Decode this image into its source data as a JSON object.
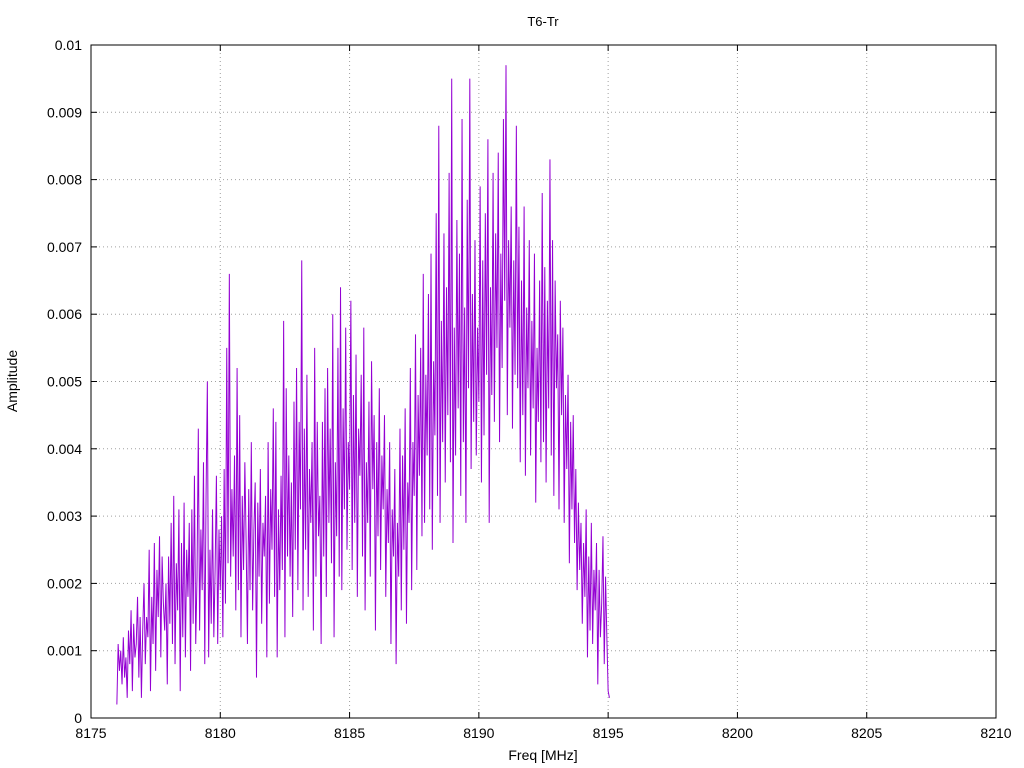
{
  "chart_data": {
    "type": "line",
    "title": "T6-Tr",
    "xlabel": "Freq [MHz]",
    "ylabel": "Amplitude",
    "xlim": [
      8175,
      8210
    ],
    "ylim": [
      0,
      0.01
    ],
    "grid": true,
    "legend": "none",
    "x_ticks": [
      "8175",
      "8180",
      "8185",
      "8190",
      "8195",
      "8200",
      "8205",
      "8210"
    ],
    "y_ticks": [
      "0",
      "0.001",
      "0.002",
      "0.003",
      "0.004",
      "0.005",
      "0.006",
      "0.007",
      "0.008",
      "0.009",
      "0.01"
    ],
    "series": [
      {
        "color": "#9400d3",
        "x_start": 8176.0,
        "x_step": 0.05,
        "values": [
          0.0002,
          0.0011,
          0.0007,
          0.001,
          0.0005,
          0.0012,
          0.0006,
          0.0009,
          0.0003,
          0.0013,
          0.0008,
          0.0016,
          0.0004,
          0.0014,
          0.0009,
          0.0011,
          0.0018,
          0.0006,
          0.0015,
          0.0003,
          0.0013,
          0.002,
          0.0008,
          0.0015,
          0.0012,
          0.0025,
          0.0004,
          0.0018,
          0.0011,
          0.0026,
          0.0007,
          0.0022,
          0.0015,
          0.0027,
          0.0009,
          0.0024,
          0.0017,
          0.0013,
          0.002,
          0.0005,
          0.0024,
          0.0014,
          0.0029,
          0.0011,
          0.0033,
          0.0008,
          0.0023,
          0.0016,
          0.0031,
          0.0004,
          0.0026,
          0.0012,
          0.0032,
          0.0009,
          0.0025,
          0.0018,
          0.0029,
          0.0007,
          0.0031,
          0.0014,
          0.0036,
          0.0011,
          0.0021,
          0.0043,
          0.0013,
          0.0028,
          0.0019,
          0.0038,
          0.0008,
          0.0033,
          0.005,
          0.0009,
          0.0025,
          0.0014,
          0.0031,
          0.0012,
          0.0022,
          0.0036,
          0.0011,
          0.0028,
          0.0019,
          0.003,
          0.0012,
          0.0037,
          0.0017,
          0.0055,
          0.0023,
          0.0066,
          0.0021,
          0.0034,
          0.0024,
          0.0039,
          0.0016,
          0.0052,
          0.0019,
          0.0045,
          0.0012,
          0.0033,
          0.0022,
          0.0038,
          0.0026,
          0.0011,
          0.0034,
          0.0019,
          0.0041,
          0.0016,
          0.0028,
          0.0035,
          0.0006,
          0.0032,
          0.0021,
          0.0037,
          0.0014,
          0.0029,
          0.0024,
          0.0033,
          0.0009,
          0.0041,
          0.0017,
          0.0034,
          0.0025,
          0.0046,
          0.0018,
          0.0044,
          0.0009,
          0.0031,
          0.0019,
          0.0036,
          0.0022,
          0.0059,
          0.0012,
          0.0049,
          0.0024,
          0.0039,
          0.0021,
          0.0035,
          0.0015,
          0.0047,
          0.0025,
          0.0052,
          0.0019,
          0.0044,
          0.0031,
          0.0068,
          0.0016,
          0.0043,
          0.0025,
          0.0051,
          0.0018,
          0.0037,
          0.0029,
          0.0041,
          0.0013,
          0.0055,
          0.0021,
          0.0044,
          0.0027,
          0.0033,
          0.0011,
          0.0044,
          0.0024,
          0.0049,
          0.0018,
          0.0052,
          0.0029,
          0.0043,
          0.0023,
          0.006,
          0.0012,
          0.0038,
          0.0027,
          0.0055,
          0.0021,
          0.0064,
          0.0019,
          0.0046,
          0.0031,
          0.0058,
          0.0025,
          0.0041,
          0.0034,
          0.0062,
          0.0022,
          0.0048,
          0.0029,
          0.0054,
          0.0018,
          0.0043,
          0.0036,
          0.0051,
          0.0024,
          0.0058,
          0.0016,
          0.0038,
          0.0029,
          0.0047,
          0.0021,
          0.0053,
          0.0034,
          0.0045,
          0.0013,
          0.0041,
          0.0027,
          0.0049,
          0.0022,
          0.0039,
          0.0031,
          0.0045,
          0.0018,
          0.0034,
          0.0026,
          0.0041,
          0.0011,
          0.0031,
          0.0024,
          0.0037,
          0.0008,
          0.0029,
          0.0021,
          0.0043,
          0.0016,
          0.0039,
          0.0025,
          0.0046,
          0.0014,
          0.0035,
          0.0029,
          0.0052,
          0.0019,
          0.0041,
          0.0033,
          0.0057,
          0.0022,
          0.0048,
          0.0036,
          0.0055,
          0.0027,
          0.0066,
          0.0029,
          0.0051,
          0.0039,
          0.0063,
          0.0031,
          0.0069,
          0.0025,
          0.0053,
          0.0042,
          0.0075,
          0.0033,
          0.0088,
          0.0029,
          0.0059,
          0.0041,
          0.0072,
          0.0035,
          0.0064,
          0.0045,
          0.0081,
          0.0038,
          0.0095,
          0.0026,
          0.0058,
          0.0039,
          0.0074,
          0.0046,
          0.0069,
          0.0033,
          0.0089,
          0.0041,
          0.0061,
          0.0029,
          0.0077,
          0.0049,
          0.0095,
          0.0037,
          0.0063,
          0.0044,
          0.0071,
          0.0039,
          0.0058,
          0.0047,
          0.0079,
          0.0035,
          0.0068,
          0.0042,
          0.0075,
          0.0051,
          0.0086,
          0.0029,
          0.0064,
          0.0048,
          0.0081,
          0.0044,
          0.0072,
          0.0055,
          0.0084,
          0.0041,
          0.0069,
          0.0052,
          0.0089,
          0.0062,
          0.0097,
          0.0045,
          0.0071,
          0.0058,
          0.0076,
          0.0043,
          0.0068,
          0.0051,
          0.0088,
          0.0049,
          0.0073,
          0.0038,
          0.0065,
          0.0045,
          0.0076,
          0.0036,
          0.0061,
          0.0049,
          0.0071,
          0.0039,
          0.0059,
          0.0046,
          0.0069,
          0.0032,
          0.0055,
          0.0044,
          0.0065,
          0.0038,
          0.0078,
          0.0041,
          0.0067,
          0.0035,
          0.0062,
          0.0046,
          0.0083,
          0.0039,
          0.0071,
          0.0033,
          0.0065,
          0.0049,
          0.0057,
          0.0031,
          0.0062,
          0.0045,
          0.0058,
          0.0029,
          0.0048,
          0.0037,
          0.0051,
          0.0023,
          0.0044,
          0.0031,
          0.0045,
          0.0026,
          0.0037,
          0.0019,
          0.0032,
          0.0022,
          0.0029,
          0.0014,
          0.0026,
          0.0018,
          0.0031,
          0.0009,
          0.0024,
          0.0013,
          0.0029,
          0.0011,
          0.0022,
          0.0016,
          0.0026,
          0.0005,
          0.0022,
          0.0012,
          0.0017,
          0.0027,
          0.0008,
          0.0021,
          0.0012,
          0.0004,
          0.0003
        ]
      }
    ]
  }
}
